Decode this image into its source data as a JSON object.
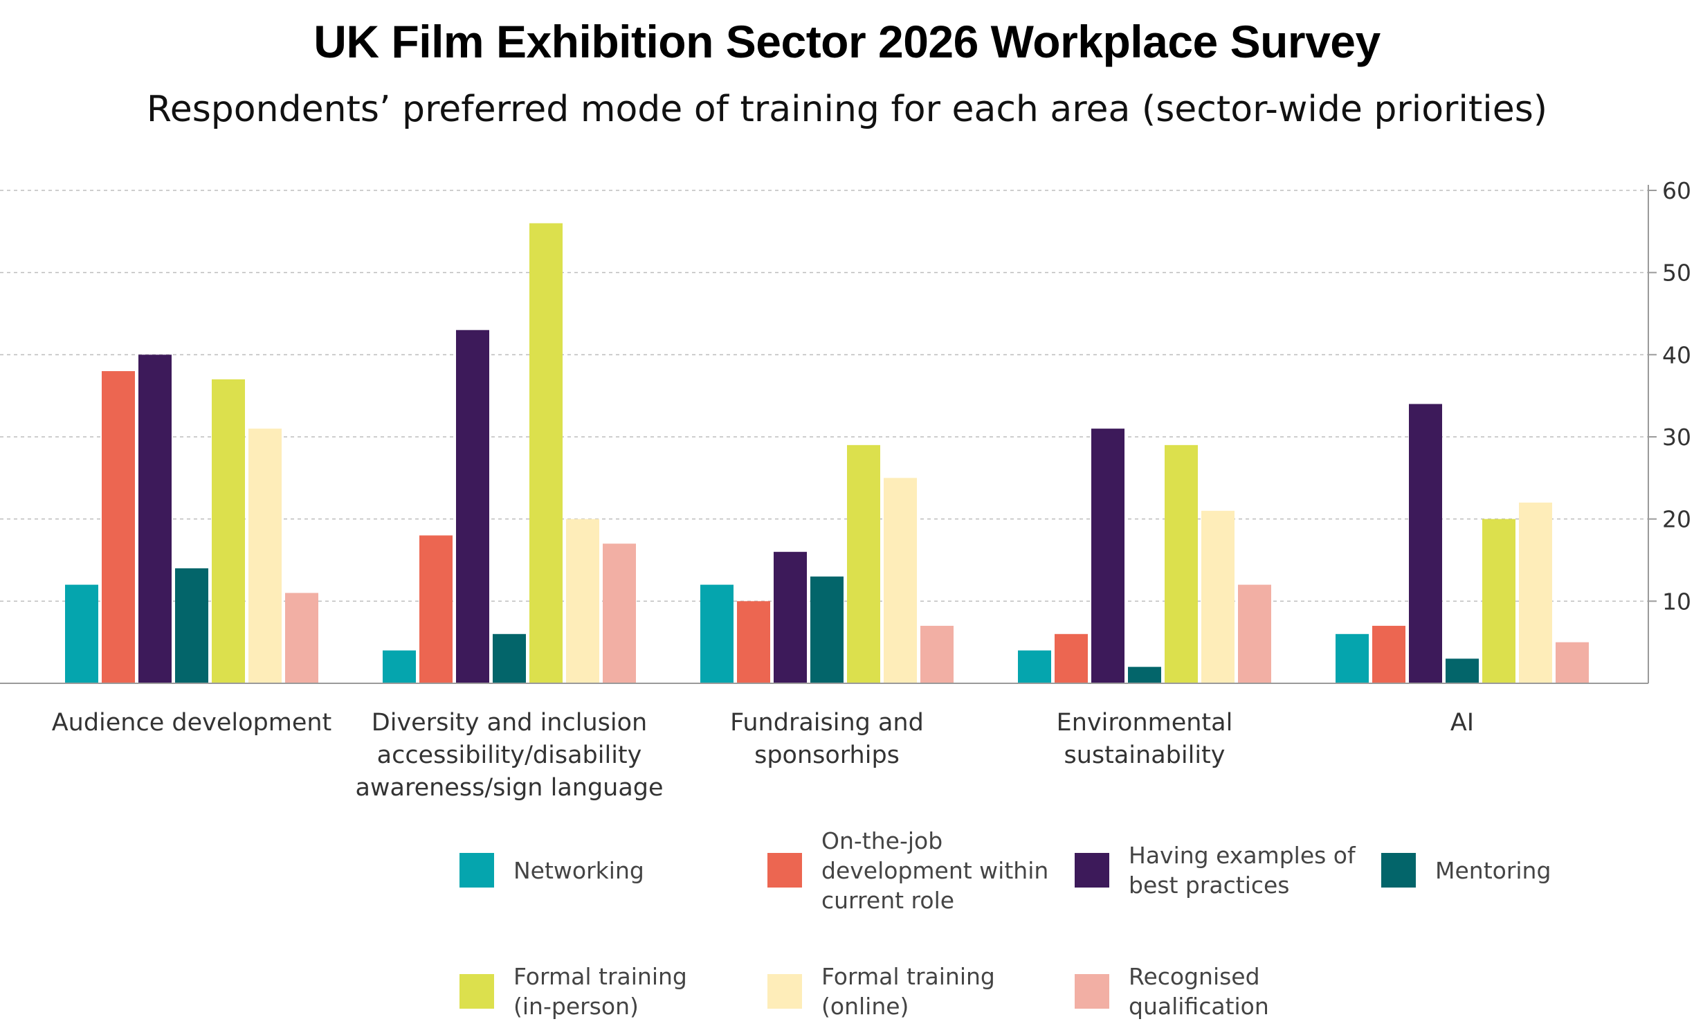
{
  "title": "UK Film Exhibition Sector 2026 Workplace Survey",
  "subtitle": "Respondents’ preferred mode of training for each area (sector-wide priorities)",
  "chart_data": {
    "type": "bar",
    "categories": [
      "Audience development",
      "Diversity and inclusion\naccessibility/disability\nawareness/sign language",
      "Fundraising and\nsponsorhips",
      "Environmental\nsustainability",
      "AI"
    ],
    "series": [
      {
        "name": "Networking",
        "color": "#05A5AE",
        "values": [
          12,
          4,
          12,
          4,
          6
        ]
      },
      {
        "name": "On-the-job\ndevelopment within\ncurrent role",
        "color": "#EC6651",
        "values": [
          38,
          18,
          10,
          6,
          7
        ]
      },
      {
        "name": "Having examples of\nbest practices",
        "color": "#3D1A5A",
        "values": [
          40,
          43,
          16,
          31,
          34
        ]
      },
      {
        "name": "Mentoring",
        "color": "#03656A",
        "values": [
          14,
          6,
          13,
          2,
          3
        ]
      },
      {
        "name": "Formal training\n(in-person)",
        "color": "#DCE04D",
        "values": [
          37,
          56,
          29,
          29,
          20
        ]
      },
      {
        "name": "Formal training\n(online)",
        "color": "#FEEDB9",
        "values": [
          31,
          20,
          25,
          21,
          22
        ]
      },
      {
        "name": "Recognised\nqualification",
        "color": "#F2AFA4",
        "values": [
          11,
          17,
          7,
          12,
          5
        ]
      }
    ],
    "y_ticks": [
      "10",
      "20",
      "30",
      "40",
      "50",
      "60"
    ],
    "ylim": [
      0,
      60
    ],
    "y_axis_side": "right",
    "grid": true,
    "legend_position": "bottom"
  }
}
